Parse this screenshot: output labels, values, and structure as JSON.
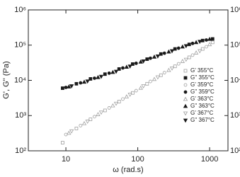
{
  "chart_data": {
    "type": "scatter",
    "xlabel": "ω (rad.s)",
    "ylabel": "G', G'' (Pa)",
    "xscale": "log",
    "yscale": "log",
    "xlim": [
      3,
      1800
    ],
    "ylim": [
      100,
      1000000
    ],
    "y2lim": [
      100,
      1000000
    ],
    "xticks": [
      10,
      100,
      1000
    ],
    "yticks": [
      {
        "value": 100,
        "label": "10²"
      },
      {
        "value": 1000,
        "label": "10³"
      },
      {
        "value": 10000,
        "label": "10⁴"
      },
      {
        "value": 100000,
        "label": "10⁵"
      },
      {
        "value": 1000000,
        "label": "10⁶"
      }
    ],
    "y2ticks": [
      {
        "value": 100,
        "label": "10²"
      },
      {
        "value": 1000,
        "label": "10³"
      },
      {
        "value": 10000,
        "label": "10⁴"
      },
      {
        "value": 100000,
        "label": "10⁵"
      },
      {
        "value": 1000000,
        "label": "10⁶"
      }
    ],
    "legend": "right",
    "series": [
      {
        "name": "G' 355°C",
        "color": "#a0a0a0",
        "marker": "square-open",
        "x": [
          9,
          14,
          22,
          35,
          55,
          85,
          135,
          210,
          330,
          520,
          800,
          1100
        ],
        "values": [
          170,
          430,
          780,
          1400,
          2500,
          4400,
          8000,
          14000,
          25000,
          45000,
          78000,
          120000
        ]
      },
      {
        "name": "G'' 355°C",
        "color": "#1a1a1a",
        "marker": "square-filled",
        "x": [
          9,
          14,
          22,
          35,
          55,
          85,
          135,
          210,
          330,
          520,
          800,
          1100
        ],
        "values": [
          6000,
          8000,
          11000,
          15000,
          21000,
          29000,
          40000,
          56000,
          78000,
          105000,
          135000,
          150000
        ]
      },
      {
        "name": "G' 359°C",
        "color": "#a0a0a0",
        "marker": "circle-open",
        "x": [
          10,
          16,
          25,
          40,
          62,
          95,
          150,
          235,
          370,
          580,
          900
        ],
        "values": [
          290,
          520,
          930,
          1650,
          2950,
          5100,
          9300,
          16500,
          29500,
          52000,
          90000
        ]
      },
      {
        "name": "G'' 359°C",
        "color": "#1a1a1a",
        "marker": "circle-filled",
        "x": [
          10,
          16,
          25,
          40,
          62,
          95,
          150,
          235,
          370,
          580,
          900
        ],
        "values": [
          6300,
          8500,
          11500,
          16000,
          22500,
          30500,
          42500,
          59000,
          82000,
          112000,
          140000
        ]
      },
      {
        "name": "G' 363°C",
        "color": "#a0a0a0",
        "marker": "triangle-up-open",
        "x": [
          11,
          18,
          28,
          45,
          70,
          110,
          170,
          270,
          420,
          650,
          1000
        ],
        "values": [
          320,
          600,
          1080,
          1920,
          3450,
          6100,
          10800,
          19500,
          35000,
          61000,
          105000
        ]
      },
      {
        "name": "G'' 363°C",
        "color": "#1a1a1a",
        "marker": "triangle-up-filled",
        "x": [
          11,
          18,
          28,
          45,
          70,
          110,
          170,
          270,
          420,
          650,
          1000
        ],
        "values": [
          6600,
          9000,
          12200,
          17000,
          24000,
          33500,
          46500,
          65000,
          90000,
          120000,
          148000
        ]
      },
      {
        "name": "G' 367°C",
        "color": "#a0a0a0",
        "marker": "triangle-down-open",
        "x": [
          12,
          20,
          31,
          50,
          78,
          120,
          190,
          300,
          470,
          730
        ],
        "values": [
          360,
          680,
          1230,
          2200,
          3950,
          6900,
          12300,
          22000,
          39000,
          68000
        ]
      },
      {
        "name": "G'' 367°C",
        "color": "#1a1a1a",
        "marker": "triangle-down-filled",
        "x": [
          12,
          20,
          31,
          50,
          78,
          120,
          190,
          300,
          470,
          730
        ],
        "values": [
          6900,
          9400,
          12800,
          17800,
          25000,
          35000,
          48500,
          68000,
          95000,
          126000
        ]
      }
    ]
  }
}
